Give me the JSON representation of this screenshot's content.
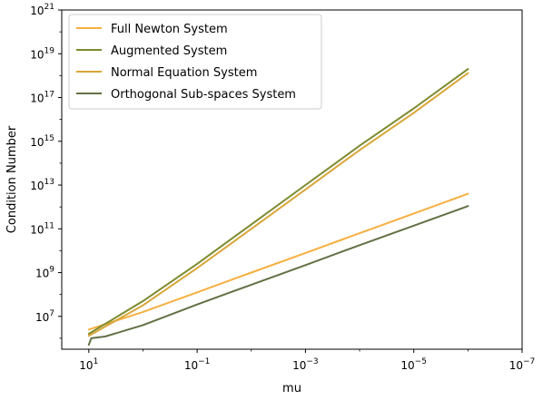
{
  "chart_data": {
    "type": "line",
    "xlabel": "mu",
    "ylabel": "Condition Number",
    "xscale": "log",
    "yscale": "log",
    "x_reversed": true,
    "xlim": [
      31.6,
      1e-07
    ],
    "ylim": [
      316000.0,
      1e+21
    ],
    "xticks": [
      {
        "value": 10,
        "base": "10",
        "exp": "1"
      },
      {
        "value": 0.1,
        "base": "10",
        "exp": "−1"
      },
      {
        "value": 0.001,
        "base": "10",
        "exp": "−3"
      },
      {
        "value": 1e-05,
        "base": "10",
        "exp": "−5"
      },
      {
        "value": 1e-07,
        "base": "10",
        "exp": "−7"
      }
    ],
    "yticks": [
      {
        "value": 10000000.0,
        "base": "10",
        "exp": "7"
      },
      {
        "value": 1000000000.0,
        "base": "10",
        "exp": "9"
      },
      {
        "value": 100000000000.0,
        "base": "10",
        "exp": "11"
      },
      {
        "value": 10000000000000.0,
        "base": "10",
        "exp": "13"
      },
      {
        "value": 1000000000000000.0,
        "base": "10",
        "exp": "15"
      },
      {
        "value": 1e+17,
        "base": "10",
        "exp": "17"
      },
      {
        "value": 1e+19,
        "base": "10",
        "exp": "19"
      },
      {
        "value": 1e+21,
        "base": "10",
        "exp": "21"
      }
    ],
    "grid": false,
    "legend_position": "top-left",
    "series": [
      {
        "name": "Full Newton System",
        "color": "#f5b041",
        "points": [
          [
            10,
            2500000.0
          ],
          [
            1,
            16000000.0
          ],
          [
            0.1,
            125000000.0
          ],
          [
            0.01,
            1000000000.0
          ],
          [
            0.001,
            7900000000.0
          ],
          [
            0.0001,
            63000000000.0
          ],
          [
            1e-05,
            500000000000.0
          ],
          [
            1e-06,
            4000000000000.0
          ],
          [
            1e-06,
            4000000000000.0
          ],
          [
            1e-06,
            4000000000000.0
          ],
          [
            1e-06,
            4000000000000.0
          ]
        ]
      },
      {
        "name": "Augmented System",
        "color": "#7d8a2e",
        "points": [
          [
            10,
            1600000.0
          ],
          [
            1,
            50000000.0
          ],
          [
            0.1,
            2500000000.0
          ],
          [
            0.01,
            160000000000.0
          ],
          [
            0.001,
            10000000000000.0
          ],
          [
            0.0001,
            630000000000000.0
          ],
          [
            1e-05,
            3.2e+16
          ],
          [
            1e-06,
            2e+18
          ],
          [
            1e-06,
            2e+18
          ],
          [
            1e-06,
            2e+18
          ],
          [
            1e-06,
            2e+18
          ]
        ]
      },
      {
        "name": "Normal Equation System",
        "color": "#d9a638",
        "points": [
          [
            10,
            1300000.0
          ],
          [
            1,
            32000000.0
          ],
          [
            0.1,
            1600000000.0
          ],
          [
            0.01,
            100000000000.0
          ],
          [
            0.001,
            6300000000000.0
          ],
          [
            0.0001,
            400000000000000.0
          ],
          [
            1e-05,
            2e+16
          ],
          [
            1e-06,
            1.3e+18
          ],
          [
            1e-06,
            1.3e+18
          ],
          [
            1e-06,
            1.3e+18
          ],
          [
            1e-06,
            1.3e+18
          ]
        ]
      },
      {
        "name": "Orthogonal Sub-spaces System",
        "color": "#627144",
        "points": [
          [
            10,
            500000.0
          ],
          [
            9,
            1000000.0
          ],
          [
            5,
            1200000.0
          ],
          [
            1,
            4000000.0
          ],
          [
            0.1,
            35000000.0
          ],
          [
            0.01,
            280000000.0
          ],
          [
            0.001,
            2200000000.0
          ],
          [
            0.0001,
            18000000000.0
          ],
          [
            1e-05,
            140000000000.0
          ],
          [
            1e-06,
            1100000000000.0
          ]
        ]
      }
    ]
  }
}
